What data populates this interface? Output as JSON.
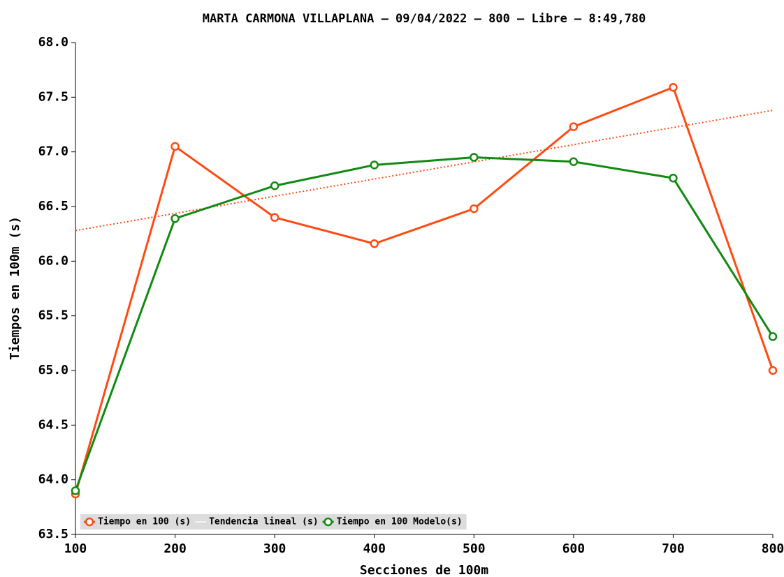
{
  "chart_data": {
    "type": "line",
    "title": "MARTA CARMONA VILLAPLANA – 09/04/2022 – 800 – Libre – 8:49,780",
    "x_label": "Secciones de 100m",
    "y_label": "Tiempos en 100m (s)",
    "x": [
      100,
      200,
      300,
      400,
      500,
      600,
      700,
      800
    ],
    "xlim": [
      100,
      800
    ],
    "xticks": [
      100,
      200,
      300,
      400,
      500,
      600,
      700,
      800
    ],
    "ylim": [
      63.5,
      68.0
    ],
    "yticks": [
      {
        "value": 63.5,
        "label": "63.5"
      },
      {
        "value": 64.0,
        "label": "64.0"
      },
      {
        "value": 64.5,
        "label": "64.5"
      },
      {
        "value": 65.0,
        "label": "65.0"
      },
      {
        "value": 65.5,
        "label": "65.5"
      },
      {
        "value": 66.0,
        "label": "66.0"
      },
      {
        "value": 66.5,
        "label": "66.5"
      },
      {
        "value": 67.0,
        "label": "67.0"
      },
      {
        "value": 67.5,
        "label": "67.5"
      },
      {
        "value": 68.0,
        "label": "68.0"
      }
    ],
    "legend": "bottom-left",
    "series": [
      {
        "name": "Tiempo en 100 (s)",
        "color": "#ff4a12",
        "markers": true,
        "values": [
          63.87,
          67.05,
          66.4,
          66.16,
          66.48,
          67.23,
          67.59,
          65.0
        ]
      },
      {
        "name": "Tendencia lineal (s)",
        "color": "#ff4a12",
        "style": "dotted",
        "x": [
          100,
          800
        ],
        "values": [
          66.28,
          67.38
        ]
      },
      {
        "name": "Tiempo en 100 Modelo(s)",
        "color": "#108a10",
        "markers": true,
        "values": [
          63.9,
          66.39,
          66.69,
          66.88,
          66.95,
          66.91,
          66.76,
          65.31
        ]
      }
    ]
  }
}
